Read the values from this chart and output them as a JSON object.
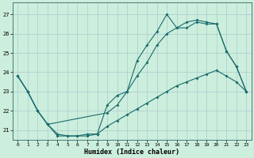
{
  "xlabel": "Humidex (Indice chaleur)",
  "background_color": "#cceedd",
  "grid_color": "#aacccc",
  "line_color": "#1a6b6b",
  "xlim": [
    -0.5,
    23.5
  ],
  "ylim": [
    20.5,
    27.6
  ],
  "yticks": [
    21,
    22,
    23,
    24,
    25,
    26,
    27
  ],
  "xticks": [
    0,
    1,
    2,
    3,
    4,
    5,
    6,
    7,
    8,
    9,
    10,
    11,
    12,
    13,
    14,
    15,
    16,
    17,
    18,
    19,
    20,
    21,
    22,
    23
  ],
  "series1_x": [
    0,
    1,
    2,
    3,
    4,
    5,
    6,
    7,
    8,
    9,
    10,
    11,
    12,
    13,
    14,
    15,
    16,
    17,
    18,
    19,
    20,
    21,
    22,
    23
  ],
  "series1_y": [
    23.8,
    23.0,
    22.0,
    21.3,
    20.7,
    20.7,
    20.7,
    20.8,
    20.8,
    22.3,
    22.8,
    23.0,
    24.6,
    25.4,
    26.1,
    27.0,
    26.3,
    26.3,
    26.6,
    26.5,
    26.5,
    25.1,
    24.3,
    23.0
  ],
  "series2_x": [
    0,
    1,
    2,
    3,
    9,
    10,
    11,
    12,
    13,
    14,
    15,
    16,
    17,
    18,
    19,
    20,
    21,
    22,
    23
  ],
  "series2_y": [
    23.8,
    23.0,
    22.0,
    21.3,
    21.9,
    22.3,
    23.0,
    23.8,
    24.5,
    25.4,
    26.0,
    26.3,
    26.6,
    26.7,
    26.6,
    26.5,
    25.1,
    24.3,
    23.0
  ],
  "series3_x": [
    0,
    1,
    2,
    3,
    4,
    5,
    6,
    7,
    8,
    9,
    10,
    11,
    12,
    13,
    14,
    15,
    16,
    17,
    18,
    19,
    20,
    21,
    22,
    23
  ],
  "series3_y": [
    23.8,
    23.0,
    22.0,
    21.3,
    20.8,
    20.7,
    20.7,
    20.7,
    20.8,
    21.2,
    21.5,
    21.8,
    22.1,
    22.4,
    22.7,
    23.0,
    23.3,
    23.5,
    23.7,
    23.9,
    24.1,
    23.8,
    23.5,
    23.0
  ]
}
